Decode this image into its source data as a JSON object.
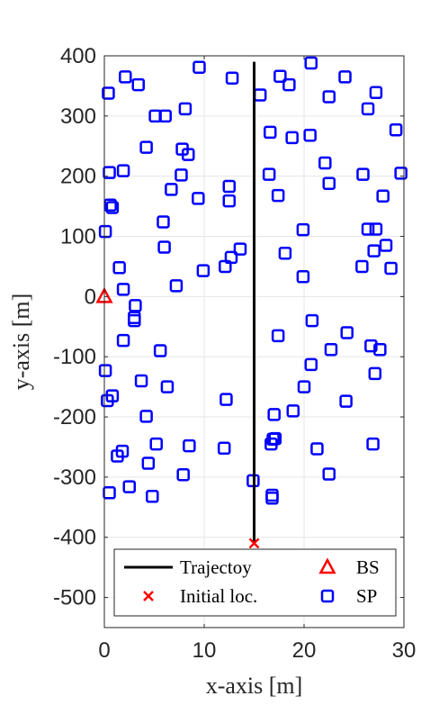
{
  "chart_data": {
    "type": "scatter",
    "title": "",
    "xlabel": "x-axis [m]",
    "ylabel": "y-axis [m]",
    "xlim": [
      0,
      30
    ],
    "ylim": [
      -550,
      400
    ],
    "xticks": [
      0,
      10,
      20,
      30
    ],
    "yticks": [
      400,
      300,
      200,
      100,
      0,
      -100,
      -200,
      -300,
      -400,
      -500
    ],
    "xtick_labels": [
      "0",
      "10",
      "20",
      "30"
    ],
    "ytick_labels": [
      "400",
      "300",
      "200",
      "100",
      "0",
      "-100",
      "-200",
      "-300",
      "-400",
      "-500"
    ],
    "grid": true,
    "legend_position": "bottom",
    "colors": {
      "trajectory": "#000000",
      "initial": "#ff0000",
      "bs": "#ff0000",
      "sp": "#0000ff",
      "grid": "#e6e6e6",
      "axis": "#262626"
    },
    "series": [
      {
        "name": "Trajectoy",
        "kind": "line",
        "x": [
          15,
          15
        ],
        "y": [
          -410,
          390
        ]
      },
      {
        "name": "Initial loc.",
        "kind": "marker-x",
        "x": [
          15
        ],
        "y": [
          -410
        ]
      },
      {
        "name": "BS",
        "kind": "marker-triangle",
        "x": [
          0
        ],
        "y": [
          0
        ]
      },
      {
        "name": "SP",
        "kind": "marker-square",
        "points": [
          [
            2.1,
            365
          ],
          [
            3.4,
            352
          ],
          [
            9.5,
            381
          ],
          [
            12.8,
            363
          ],
          [
            17.6,
            366
          ],
          [
            18.5,
            352
          ],
          [
            20.7,
            388
          ],
          [
            24.1,
            365
          ],
          [
            0.4,
            338
          ],
          [
            15.6,
            335
          ],
          [
            22.5,
            332
          ],
          [
            27.2,
            339
          ],
          [
            5.1,
            300
          ],
          [
            6.1,
            300
          ],
          [
            8.1,
            312
          ],
          [
            26.4,
            312
          ],
          [
            4.2,
            248
          ],
          [
            7.8,
            245
          ],
          [
            8.4,
            236
          ],
          [
            16.6,
            273
          ],
          [
            18.8,
            264
          ],
          [
            20.6,
            268
          ],
          [
            29.2,
            277
          ],
          [
            0.5,
            206
          ],
          [
            1.9,
            209
          ],
          [
            7.7,
            202
          ],
          [
            6.7,
            178
          ],
          [
            12.5,
            183
          ],
          [
            16.5,
            203
          ],
          [
            22.1,
            222
          ],
          [
            22.5,
            188
          ],
          [
            25.9,
            203
          ],
          [
            29.7,
            205
          ],
          [
            0.6,
            152
          ],
          [
            0.8,
            148
          ],
          [
            9.4,
            163
          ],
          [
            12.5,
            159
          ],
          [
            17.4,
            168
          ],
          [
            27.9,
            167
          ],
          [
            0.1,
            108
          ],
          [
            5.9,
            124
          ],
          [
            6.0,
            82
          ],
          [
            13.6,
            79
          ],
          [
            12.7,
            65
          ],
          [
            12.1,
            50
          ],
          [
            9.9,
            43
          ],
          [
            18.1,
            72
          ],
          [
            19.9,
            111
          ],
          [
            26.4,
            112
          ],
          [
            27.2,
            112
          ],
          [
            27.0,
            76
          ],
          [
            28.2,
            85
          ],
          [
            1.5,
            48
          ],
          [
            19.9,
            33
          ],
          [
            25.8,
            50
          ],
          [
            28.7,
            47
          ],
          [
            1.9,
            12
          ],
          [
            3.1,
            -15
          ],
          [
            7.2,
            18
          ],
          [
            3.0,
            -35
          ],
          [
            3.0,
            -40
          ],
          [
            17.4,
            -65
          ],
          [
            20.8,
            -40
          ],
          [
            24.3,
            -60
          ],
          [
            1.9,
            -73
          ],
          [
            5.6,
            -90
          ],
          [
            22.7,
            -88
          ],
          [
            26.7,
            -82
          ],
          [
            27.6,
            -88
          ],
          [
            0.1,
            -123
          ],
          [
            20.7,
            -113
          ],
          [
            3.7,
            -140
          ],
          [
            6.3,
            -150
          ],
          [
            12.2,
            -171
          ],
          [
            20.0,
            -150
          ],
          [
            27.1,
            -128
          ],
          [
            0.8,
            -165
          ],
          [
            0.3,
            -173
          ],
          [
            4.2,
            -199
          ],
          [
            17.0,
            -196
          ],
          [
            18.9,
            -190
          ],
          [
            24.2,
            -174
          ],
          [
            5.2,
            -245
          ],
          [
            8.5,
            -248
          ],
          [
            12.0,
            -252
          ],
          [
            16.9,
            -237
          ],
          [
            17.1,
            -236
          ],
          [
            16.7,
            -245
          ],
          [
            21.3,
            -253
          ],
          [
            26.9,
            -245
          ],
          [
            1.3,
            -265
          ],
          [
            1.8,
            -257
          ],
          [
            4.4,
            -277
          ],
          [
            7.9,
            -296
          ],
          [
            22.5,
            -295
          ],
          [
            14.9,
            -306
          ],
          [
            2.5,
            -316
          ],
          [
            0.5,
            -326
          ],
          [
            4.8,
            -332
          ],
          [
            16.8,
            -330
          ],
          [
            16.8,
            -335
          ]
        ]
      }
    ]
  }
}
